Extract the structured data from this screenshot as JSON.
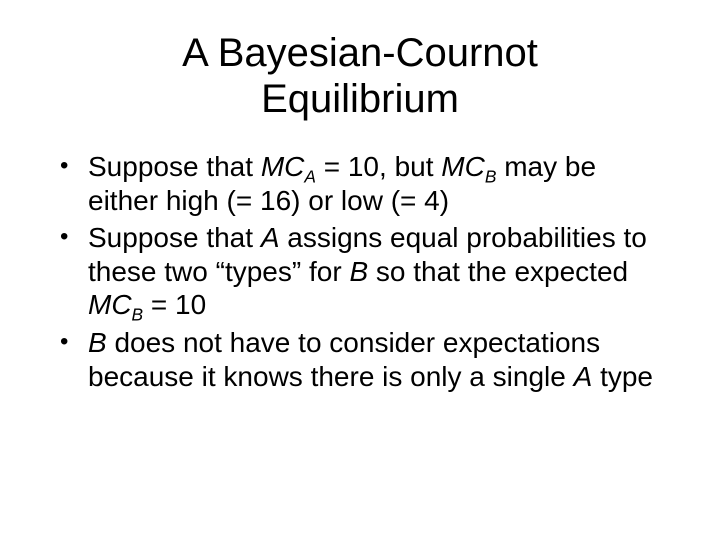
{
  "title_line1": "A Bayesian-Cournot",
  "title_line2": "Equilibrium",
  "bullets": [
    {
      "pre1": "Suppose that ",
      "mc1_base": "MC",
      "mc1_sub": "A",
      "mid1": " = 10, but ",
      "mc2_base": "MC",
      "mc2_sub": "B",
      "post1": " may be either high (= 16) or low (= 4)"
    },
    {
      "pre1": "Suppose that ",
      "a_it": "A",
      "mid1": " assigns equal probabilities to these two “types” for ",
      "b_it": "B",
      "mid2": " so that the expected ",
      "mc_base": "MC",
      "mc_sub": "B",
      "post": " = 10"
    },
    {
      "b_it": "B",
      "mid1": " does not have to consider expectations because it knows there is only a single ",
      "a_it": "A",
      "post": " type"
    }
  ]
}
